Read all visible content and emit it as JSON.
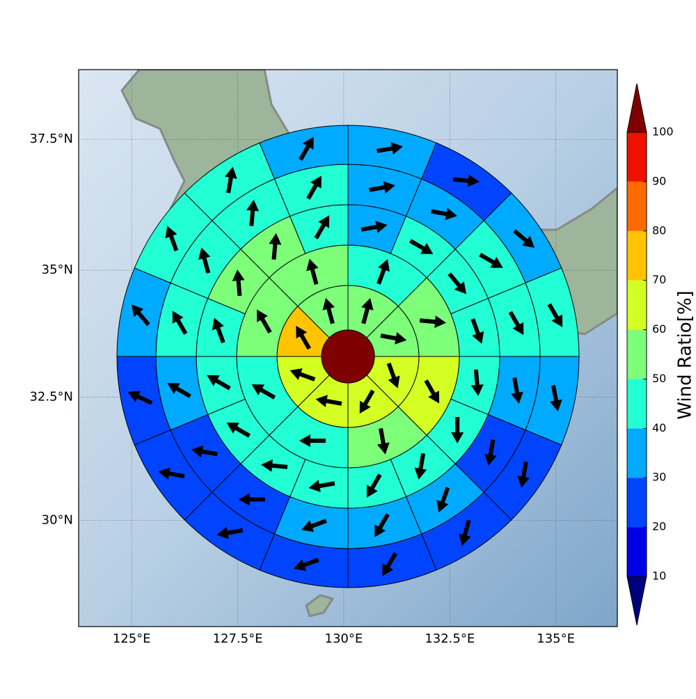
{
  "chart_data": {
    "type": "polar-wind-map",
    "xlim": [
      123.75,
      136.45
    ],
    "ylim": [
      27.8,
      38.8
    ],
    "xticks": [
      {
        "value": 125,
        "label": "125°E"
      },
      {
        "value": 127.5,
        "label": "127.5°E"
      },
      {
        "value": 130,
        "label": "130°E"
      },
      {
        "value": 132.5,
        "label": "132.5°E"
      },
      {
        "value": 135,
        "label": "135°E"
      }
    ],
    "yticks": [
      {
        "value": 30,
        "label": "30°N"
      },
      {
        "value": 32.5,
        "label": "32.5°N"
      },
      {
        "value": 35,
        "label": "35°N"
      },
      {
        "value": 37.5,
        "label": "37.5°N"
      }
    ],
    "grid": true,
    "center": {
      "value": 100
    },
    "rings": [
      {
        "values": [
          55,
          55,
          65,
          62,
          62,
          62,
          75,
          55
        ],
        "directions": [
          15,
          100,
          160,
          210,
          280,
          290,
          330,
          345
        ]
      },
      {
        "values": [
          45,
          55,
          65,
          55,
          45,
          45,
          55,
          55
        ],
        "directions": [
          20,
          95,
          150,
          170,
          270,
          300,
          330,
          345
        ]
      },
      {
        "values": [
          35,
          45,
          45,
          45,
          45,
          45,
          45,
          45,
          45,
          45,
          45,
          45,
          45,
          55,
          55,
          45
        ],
        "directions": [
          80,
          120,
          140,
          160,
          175,
          180,
          190,
          210,
          260,
          275,
          300,
          300,
          340,
          355,
          5,
          30
        ]
      },
      {
        "values": [
          35,
          35,
          45,
          45,
          35,
          25,
          35,
          35,
          35,
          25,
          25,
          35,
          45,
          45,
          45,
          45
        ],
        "directions": [
          80,
          100,
          120,
          150,
          170,
          190,
          200,
          210,
          250,
          270,
          280,
          300,
          330,
          345,
          5,
          30
        ]
      },
      {
        "values": [
          35,
          25,
          35,
          45,
          35,
          25,
          25,
          25,
          25,
          25,
          25,
          25,
          35,
          45,
          45,
          35
        ],
        "directions": [
          80,
          95,
          130,
          150,
          170,
          190,
          195,
          210,
          250,
          260,
          280,
          295,
          320,
          340,
          10,
          30
        ]
      }
    ],
    "colorbar": {
      "label": "Wind Ratio[%]",
      "ticks": [
        10,
        20,
        30,
        40,
        50,
        60,
        70,
        80,
        90,
        100
      ],
      "colors": [
        "#00007f",
        "#0000e6",
        "#0044ff",
        "#00aaff",
        "#22ffd4",
        "#7dff7a",
        "#d4ff22",
        "#ffc400",
        "#ff6a00",
        "#ee1100",
        "#7f0000"
      ]
    }
  }
}
